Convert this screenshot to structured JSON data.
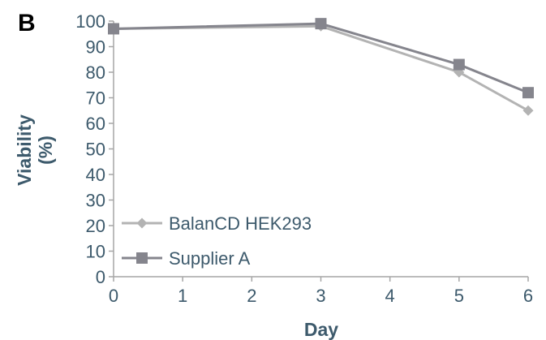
{
  "panel_label": "B",
  "chart_data": {
    "type": "line",
    "title": "",
    "xlabel": "Day",
    "ylabel_lines": [
      "Viability",
      "(%)"
    ],
    "x": [
      0,
      3,
      5,
      6
    ],
    "xticks": [
      "0",
      "1",
      "2",
      "3",
      "4",
      "5",
      "6"
    ],
    "xlim": [
      0,
      6
    ],
    "ylim": [
      0,
      100
    ],
    "yticks": [
      "0",
      "10",
      "20",
      "30",
      "40",
      "50",
      "60",
      "70",
      "80",
      "90",
      "100"
    ],
    "grid": false,
    "legend_position": "bottom-left",
    "series": [
      {
        "name": "BalanCD HEK293",
        "values": [
          97,
          98,
          80,
          65
        ],
        "color": "#b3b3b3",
        "marker": "diamond"
      },
      {
        "name": "Supplier A",
        "values": [
          97,
          99,
          83,
          72
        ],
        "color": "#85858d",
        "marker": "square"
      }
    ]
  }
}
